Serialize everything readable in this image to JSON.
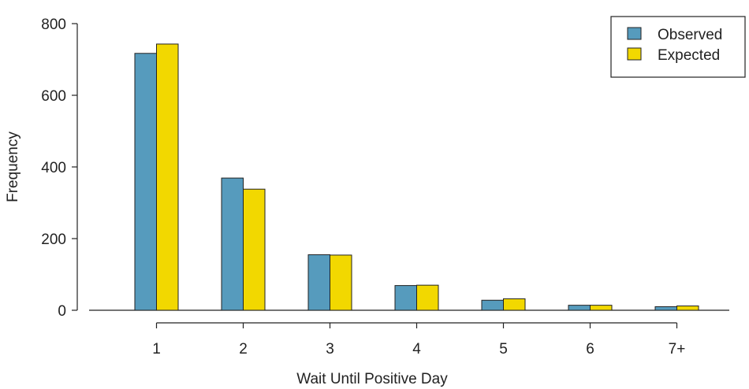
{
  "chart_data": {
    "type": "bar",
    "title": "",
    "xlabel": "Wait Until Positive Day",
    "ylabel": "Frequency",
    "ylim": [
      0,
      800
    ],
    "yticks": [
      0,
      200,
      400,
      600,
      800
    ],
    "grid": false,
    "legend_position": "top-right",
    "categories": [
      "1",
      "2",
      "3",
      "4",
      "5",
      "6",
      "7+"
    ],
    "series": [
      {
        "name": "Observed",
        "color": "#569bbd",
        "values": [
          717,
          369,
          155,
          69,
          28,
          14,
          10
        ]
      },
      {
        "name": "Expected",
        "color": "#f2d800",
        "values": [
          743,
          338,
          154,
          70,
          32,
          14,
          12
        ]
      }
    ]
  }
}
